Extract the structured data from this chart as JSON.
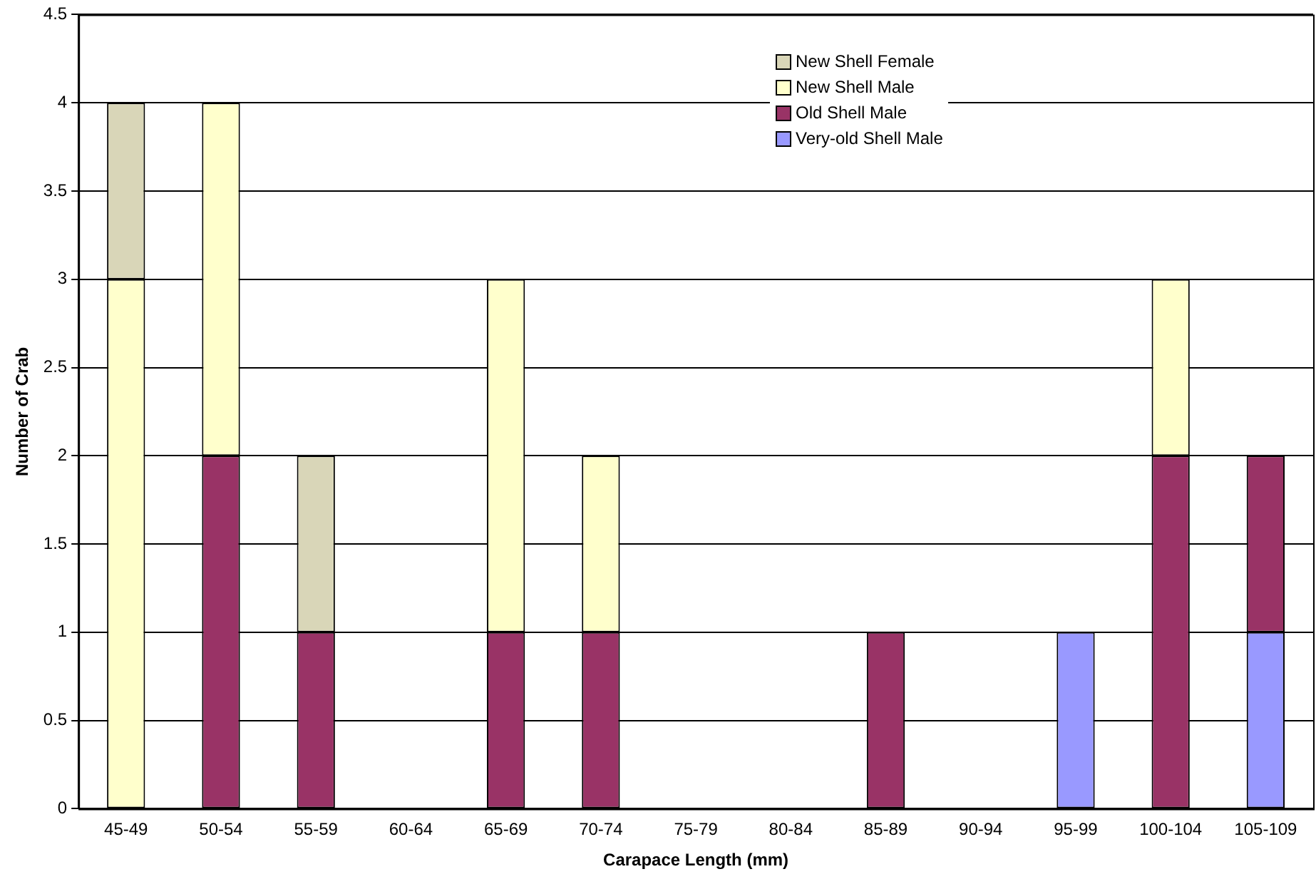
{
  "chart_data": {
    "type": "bar",
    "stacked": true,
    "xlabel": "Carapace Length (mm)",
    "ylabel": "Number of Crab",
    "categories": [
      "45-49",
      "50-54",
      "55-59",
      "60-64",
      "65-69",
      "70-74",
      "75-79",
      "80-84",
      "85-89",
      "90-94",
      "95-99",
      "100-104",
      "105-109"
    ],
    "series": [
      {
        "name": "Very-old Shell Male",
        "color": "#9999ff",
        "values": [
          0,
          0,
          0,
          0,
          0,
          0,
          0,
          0,
          0,
          0,
          1,
          0,
          1
        ]
      },
      {
        "name": "Old Shell Male",
        "color": "#993366",
        "values": [
          0,
          2,
          1,
          0,
          1,
          1,
          0,
          0,
          1,
          0,
          0,
          2,
          1
        ]
      },
      {
        "name": "New Shell Male",
        "color": "#ffffcc",
        "values": [
          3,
          2,
          0,
          0,
          2,
          1,
          0,
          0,
          0,
          0,
          0,
          1,
          0
        ]
      },
      {
        "name": "New Shell Female",
        "color": "#d9d6b8",
        "values": [
          1,
          0,
          1,
          0,
          0,
          0,
          0,
          0,
          0,
          0,
          0,
          0,
          0
        ]
      }
    ],
    "ylim": [
      0,
      4.5
    ],
    "yticks": [
      0,
      0.5,
      1,
      1.5,
      2,
      2.5,
      3,
      3.5,
      4,
      4.5
    ],
    "grid": "y",
    "legend": "top right"
  }
}
